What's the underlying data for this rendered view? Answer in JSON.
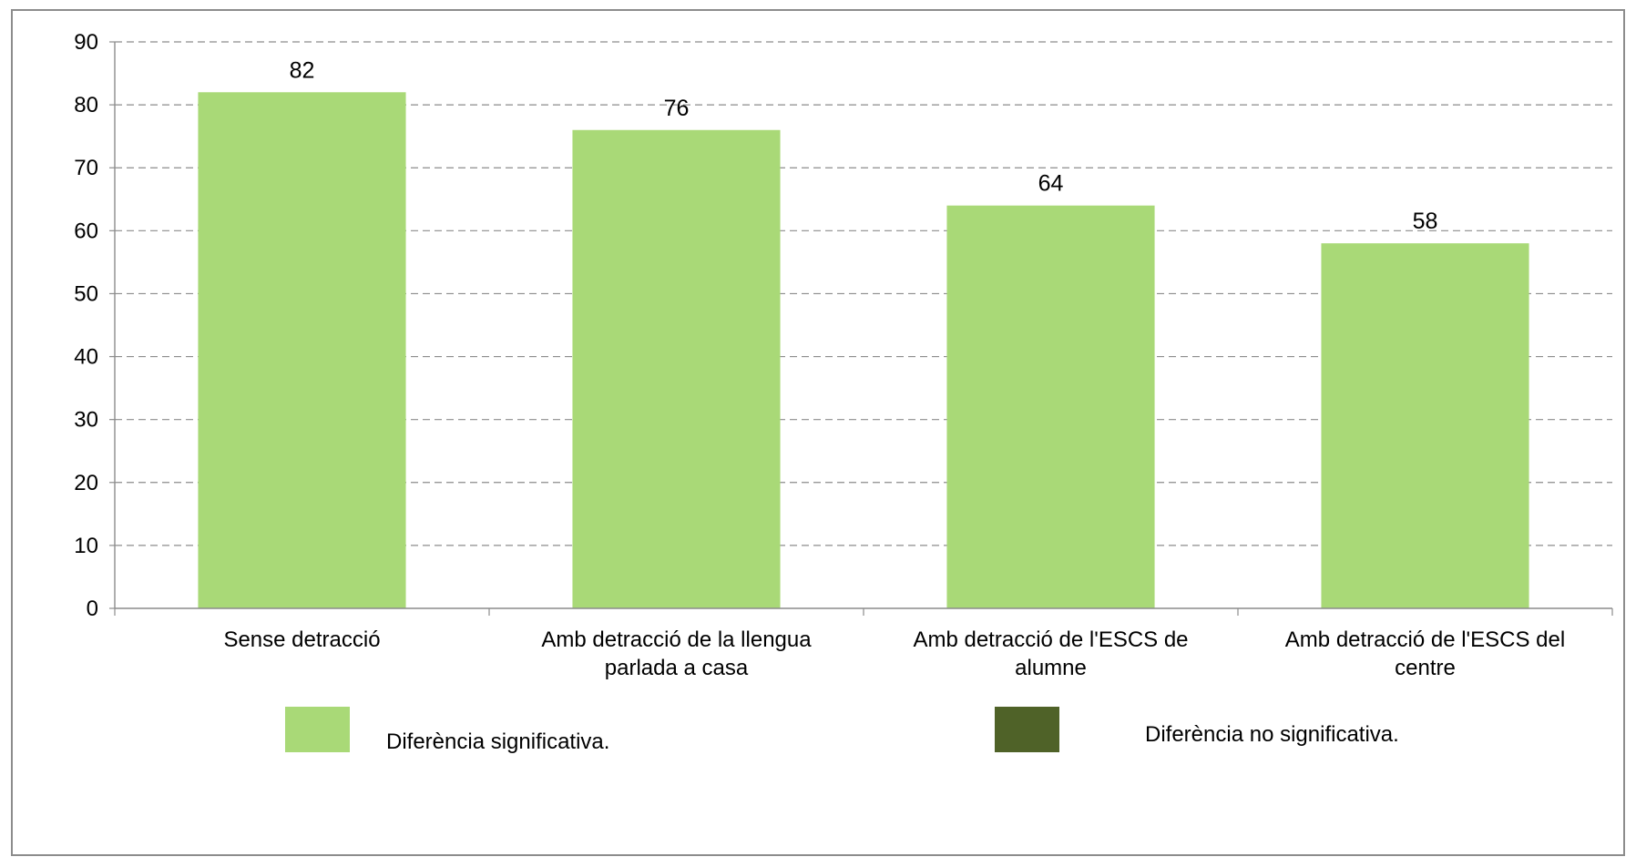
{
  "chart_data": {
    "type": "bar",
    "title": "",
    "xlabel": "",
    "ylabel": "",
    "categories": [
      [
        "Sense detracció"
      ],
      [
        "Amb detracció de la llengua",
        "parlada a casa"
      ],
      [
        "Amb detracció de l'ESCS de",
        "alumne"
      ],
      [
        "Amb detracció de l'ESCS del",
        "centre"
      ]
    ],
    "values": [
      82,
      76,
      64,
      58
    ],
    "data_labels": [
      "82",
      "76",
      "64",
      "58"
    ],
    "ylim": [
      0,
      90
    ],
    "yticks": [
      0,
      10,
      20,
      30,
      40,
      50,
      60,
      70,
      80,
      90
    ],
    "ytick_labels": [
      "0",
      "10",
      "20",
      "30",
      "40",
      "50",
      "60",
      "70",
      "80",
      "90"
    ],
    "grid": "horizontal-dashed",
    "bar_color": "#a9d977",
    "legend_position": "bottom",
    "legend": [
      {
        "label": "Diferència significativa.",
        "color": "#a9d977"
      },
      {
        "label": "Diferència no significativa.",
        "color": "#4f6228"
      }
    ]
  }
}
